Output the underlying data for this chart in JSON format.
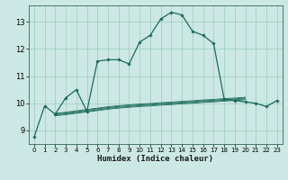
{
  "xlabel": "Humidex (Indice chaleur)",
  "bg_color": "#cce8e4",
  "grid_color": "#99ccbb",
  "line_color": "#1a6b5a",
  "xlim": [
    -0.5,
    23.5
  ],
  "ylim": [
    8.5,
    13.6
  ],
  "yticks": [
    9,
    10,
    11,
    12,
    13
  ],
  "xticks": [
    0,
    1,
    2,
    3,
    4,
    5,
    6,
    7,
    8,
    9,
    10,
    11,
    12,
    13,
    14,
    15,
    16,
    17,
    18,
    19,
    20,
    21,
    22,
    23
  ],
  "main_line_x": [
    0,
    1,
    2,
    3,
    4,
    5,
    6,
    7,
    8,
    9,
    10,
    11,
    12,
    13,
    14,
    15,
    16,
    17,
    18,
    19,
    20,
    21,
    22,
    23
  ],
  "main_line_y": [
    8.75,
    9.9,
    9.6,
    10.2,
    10.5,
    9.7,
    11.55,
    11.6,
    11.6,
    11.45,
    12.25,
    12.5,
    13.1,
    13.35,
    13.25,
    12.65,
    12.5,
    12.2,
    10.15,
    10.1,
    10.05,
    10.0,
    9.88,
    10.1
  ],
  "flat_lines_x": [
    2,
    3,
    4,
    5,
    6,
    7,
    8,
    9,
    10,
    11,
    12,
    13,
    14,
    15,
    16,
    17,
    18,
    19,
    20
  ],
  "flat_line1": [
    9.63,
    9.67,
    9.72,
    9.77,
    9.82,
    9.87,
    9.91,
    9.94,
    9.97,
    9.99,
    10.02,
    10.04,
    10.07,
    10.09,
    10.12,
    10.14,
    10.17,
    10.19,
    10.22
  ],
  "flat_line2": [
    9.6,
    9.64,
    9.69,
    9.74,
    9.79,
    9.84,
    9.88,
    9.91,
    9.94,
    9.96,
    9.99,
    10.01,
    10.04,
    10.06,
    10.09,
    10.11,
    10.14,
    10.16,
    10.19
  ],
  "flat_line3": [
    9.57,
    9.61,
    9.66,
    9.71,
    9.76,
    9.81,
    9.85,
    9.88,
    9.91,
    9.93,
    9.96,
    9.98,
    10.01,
    10.03,
    10.06,
    10.08,
    10.11,
    10.13,
    10.16
  ],
  "flat_line4": [
    9.54,
    9.58,
    9.63,
    9.68,
    9.73,
    9.78,
    9.82,
    9.85,
    9.88,
    9.9,
    9.93,
    9.95,
    9.98,
    10.0,
    10.03,
    10.05,
    10.08,
    10.1,
    10.13
  ]
}
